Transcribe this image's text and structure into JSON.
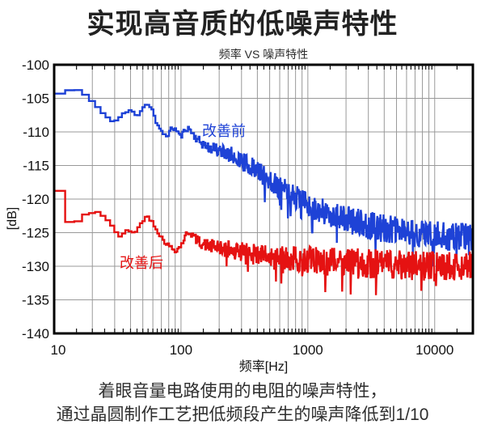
{
  "page": {
    "background": "#ffffff"
  },
  "title": "实现高音质的低噪声特性",
  "caption": {
    "line1": "着眼音量电路使用的电阻的噪声特性，",
    "line2": "通过晶圆制作工艺把低频段产生的噪声降低到1/10"
  },
  "chart_data": {
    "type": "line",
    "title": "频率 VS 噪声特性",
    "xlabel": "频率[Hz]",
    "ylabel": "[dB]",
    "x_scale": "log",
    "xlim": [
      10,
      20000
    ],
    "ylim": [
      -140,
      -100
    ],
    "x_ticks": [
      10,
      100,
      1000,
      10000
    ],
    "y_ticks": [
      -100,
      -105,
      -110,
      -115,
      -120,
      -125,
      -130,
      -135,
      -140
    ],
    "grid": true,
    "grid_color": "#999999",
    "frame_color": "#000000",
    "series": [
      {
        "name": "改善前",
        "color": "#1e42d6",
        "seed": 11,
        "spike_prob": 0.04,
        "anchors": [
          [
            10,
            -100
          ],
          [
            10.15,
            -104.3
          ],
          [
            12.6,
            -104.3
          ],
          [
            12.8,
            -103.8
          ],
          [
            15.8,
            -103.8
          ],
          [
            16.1,
            -104.5
          ],
          [
            19,
            -104.5
          ],
          [
            19.4,
            -105.3
          ],
          [
            21.5,
            -106.1
          ],
          [
            23.5,
            -106.8
          ],
          [
            25.5,
            -107.5
          ],
          [
            27.5,
            -108.2
          ],
          [
            29,
            -108.5
          ],
          [
            31.5,
            -108.2
          ],
          [
            33.5,
            -107.7
          ],
          [
            36,
            -107.2
          ],
          [
            40,
            -106.8
          ],
          [
            43,
            -107.2
          ],
          [
            45.5,
            -107.6
          ],
          [
            47.5,
            -107.1
          ],
          [
            50,
            -106.4
          ],
          [
            53,
            -105.9
          ],
          [
            57,
            -106.1
          ],
          [
            60,
            -106.8
          ],
          [
            64,
            -108.7
          ],
          [
            68,
            -109.6
          ],
          [
            72,
            -110.2
          ],
          [
            78,
            -110.6
          ],
          [
            85,
            -109.4
          ],
          [
            90,
            -109.6
          ],
          [
            95,
            -110.0
          ],
          [
            100,
            -110.8
          ],
          [
            105,
            -110.0
          ],
          [
            110,
            -109.5
          ],
          [
            118,
            -109.6
          ],
          [
            125,
            -110.4
          ],
          [
            140,
            -111.4
          ],
          [
            160,
            -112.2
          ],
          [
            200,
            -112.8
          ],
          [
            250,
            -113.4
          ],
          [
            300,
            -114.3
          ],
          [
            400,
            -115.8
          ],
          [
            500,
            -117.2
          ],
          [
            700,
            -119.0
          ],
          [
            1000,
            -120.8
          ],
          [
            1400,
            -122.0
          ],
          [
            2000,
            -123.0
          ],
          [
            3000,
            -123.9
          ],
          [
            5000,
            -124.7
          ],
          [
            8000,
            -125.2
          ],
          [
            12000,
            -125.5
          ],
          [
            20000,
            -125.6
          ]
        ],
        "noise_env": [
          [
            10,
            0.12
          ],
          [
            30,
            0.15
          ],
          [
            60,
            0.2
          ],
          [
            100,
            0.35
          ],
          [
            150,
            0.7
          ],
          [
            200,
            1.0
          ],
          [
            300,
            1.4
          ],
          [
            500,
            1.7
          ],
          [
            1000,
            1.9
          ],
          [
            3000,
            2.1
          ],
          [
            20000,
            2.2
          ]
        ]
      },
      {
        "name": "改善后",
        "color": "#e51212",
        "seed": 42,
        "spike_prob": 0.05,
        "anchors": [
          [
            10,
            -105
          ],
          [
            10.15,
            -118.8
          ],
          [
            12.7,
            -118.8
          ],
          [
            12.9,
            -123.4
          ],
          [
            16,
            -123.4
          ],
          [
            16.3,
            -122.6
          ],
          [
            18,
            -122.3
          ],
          [
            19.5,
            -122.0
          ],
          [
            23,
            -121.9
          ],
          [
            24.5,
            -122.5
          ],
          [
            26.5,
            -123.2
          ],
          [
            28.5,
            -124.0
          ],
          [
            30.5,
            -124.8
          ],
          [
            32.5,
            -125.4
          ],
          [
            34,
            -125.6
          ],
          [
            36,
            -125.1
          ],
          [
            38,
            -124.6
          ],
          [
            41,
            -124.8
          ],
          [
            44,
            -124.9
          ],
          [
            47,
            -124.1
          ],
          [
            50,
            -123.2
          ],
          [
            53,
            -122.6
          ],
          [
            56,
            -122.8
          ],
          [
            60,
            -123.4
          ],
          [
            64,
            -124.4
          ],
          [
            68,
            -125.3
          ],
          [
            72,
            -126.0
          ],
          [
            76,
            -126.5
          ],
          [
            80,
            -126.9
          ],
          [
            85,
            -127.3
          ],
          [
            90,
            -127.6
          ],
          [
            95,
            -127.4
          ],
          [
            100,
            -126.9
          ],
          [
            105,
            -126.1
          ],
          [
            110,
            -125.3
          ],
          [
            115,
            -124.9
          ],
          [
            120,
            -125.0
          ],
          [
            125,
            -125.5
          ],
          [
            135,
            -126.2
          ],
          [
            150,
            -126.7
          ],
          [
            170,
            -127.0
          ],
          [
            200,
            -127.3
          ],
          [
            250,
            -127.6
          ],
          [
            300,
            -127.9
          ],
          [
            400,
            -128.2
          ],
          [
            500,
            -128.8
          ],
          [
            700,
            -128.9
          ],
          [
            1000,
            -129.0
          ],
          [
            2000,
            -129.4
          ],
          [
            5000,
            -129.8
          ],
          [
            10000,
            -130.0
          ],
          [
            20000,
            -130.0
          ]
        ],
        "noise_env": [
          [
            10,
            0.12
          ],
          [
            30,
            0.18
          ],
          [
            60,
            0.25
          ],
          [
            100,
            0.4
          ],
          [
            150,
            0.8
          ],
          [
            200,
            1.1
          ],
          [
            300,
            1.5
          ],
          [
            500,
            1.8
          ],
          [
            1000,
            2.0
          ],
          [
            3000,
            2.2
          ],
          [
            20000,
            2.2
          ]
        ]
      }
    ]
  }
}
